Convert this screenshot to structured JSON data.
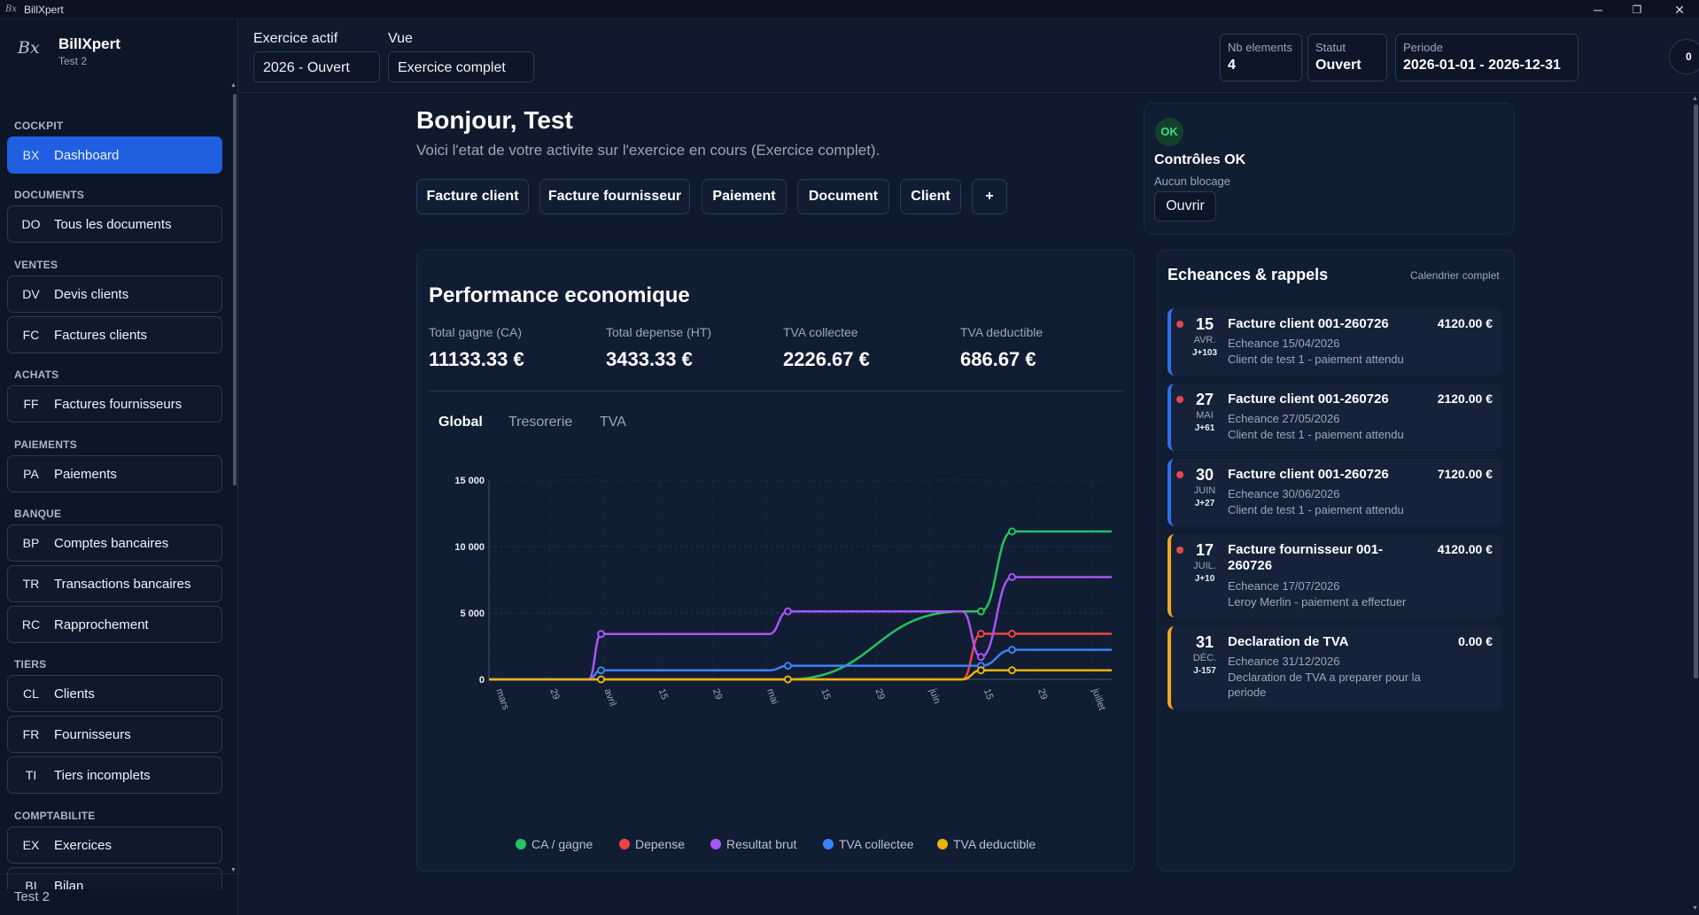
{
  "titlebar": {
    "logo": "Bx",
    "title": "BillXpert",
    "minimize": "─",
    "maximize": "❐",
    "close": "✕"
  },
  "brand": {
    "logo": "Bx",
    "name": "BillXpert",
    "subtitle": "Test 2"
  },
  "sidebar": {
    "sections": [
      {
        "title": "COCKPIT",
        "items": [
          {
            "code": "BX",
            "label": "Dashboard",
            "active": true
          }
        ]
      },
      {
        "title": "DOCUMENTS",
        "items": [
          {
            "code": "DO",
            "label": "Tous les documents"
          }
        ]
      },
      {
        "title": "VENTES",
        "items": [
          {
            "code": "DV",
            "label": "Devis clients"
          },
          {
            "code": "FC",
            "label": "Factures clients"
          }
        ]
      },
      {
        "title": "ACHATS",
        "items": [
          {
            "code": "FF",
            "label": "Factures fournisseurs"
          }
        ]
      },
      {
        "title": "PAIEMENTS",
        "items": [
          {
            "code": "PA",
            "label": "Paiements"
          }
        ]
      },
      {
        "title": "BANQUE",
        "items": [
          {
            "code": "BP",
            "label": "Comptes bancaires"
          },
          {
            "code": "TR",
            "label": "Transactions bancaires"
          },
          {
            "code": "RC",
            "label": "Rapprochement"
          }
        ]
      },
      {
        "title": "TIERS",
        "items": [
          {
            "code": "CL",
            "label": "Clients"
          },
          {
            "code": "FR",
            "label": "Fournisseurs"
          },
          {
            "code": "TI",
            "label": "Tiers incomplets"
          }
        ]
      },
      {
        "title": "COMPTABILITE",
        "items": [
          {
            "code": "EX",
            "label": "Exercices"
          },
          {
            "code": "BI",
            "label": "Bilan"
          }
        ]
      }
    ],
    "footer": "Test 2"
  },
  "topbar": {
    "exercice_label": "Exercice actif",
    "exercice_value": "2026 - Ouvert",
    "vue_label": "Vue",
    "vue_value": "Exercice complet",
    "stats": [
      {
        "key": "Nb elements",
        "value": "4"
      },
      {
        "key": "Statut",
        "value": "Ouvert"
      },
      {
        "key": "Periode",
        "value": "2026-01-01 - 2026-12-31"
      }
    ],
    "notif_count": "0"
  },
  "greeting": {
    "title": "Bonjour, Test",
    "subtitle": "Voici l'etat de votre activite sur l'exercice en cours (Exercice complet)."
  },
  "quick_actions": [
    "Facture client",
    "Facture fournisseur",
    "Paiement",
    "Document",
    "Client",
    "+"
  ],
  "controls": {
    "badge": "OK",
    "title": "Contrôles OK",
    "subtitle": "Aucun blocage",
    "button": "Ouvrir"
  },
  "performance": {
    "title": "Performance economique",
    "kpis": [
      {
        "label": "Total gagne (CA)",
        "value": "11133.33 €"
      },
      {
        "label": "Total depense (HT)",
        "value": "3433.33 €"
      },
      {
        "label": "TVA collectee",
        "value": "2226.67 €"
      },
      {
        "label": "TVA deductible",
        "value": "686.67 €"
      }
    ],
    "tabs": [
      "Global",
      "Tresorerie",
      "TVA"
    ],
    "active_tab": "Global"
  },
  "chart_data": {
    "type": "line",
    "y_ticks": [
      "15 000",
      "10 000",
      "5 000",
      "0"
    ],
    "ylim": [
      0,
      15000
    ],
    "x_ticks": [
      "mars",
      "29",
      "avril",
      "15",
      "29",
      "mai",
      "15",
      "29",
      "juin",
      "15",
      "29",
      "juillet"
    ],
    "grid": true,
    "legend_position": "bottom",
    "series": [
      {
        "name": "CA / gagne",
        "color": "#22c55e",
        "values": [
          0,
          0,
          0,
          0,
          0,
          5120,
          5120,
          11133.33,
          11133.33
        ]
      },
      {
        "name": "Depense",
        "color": "#ef4444",
        "values": [
          0,
          0,
          0,
          0,
          0,
          0,
          3433.33,
          3433.33,
          3433.33
        ]
      },
      {
        "name": "Resultat brut",
        "color": "#a855f7",
        "values": [
          0,
          0,
          3413.33,
          3413.33,
          5120,
          5120,
          1686.67,
          7700,
          7700
        ]
      },
      {
        "name": "TVA collectee",
        "color": "#3b82f6",
        "values": [
          0,
          0,
          682.67,
          682.67,
          1024,
          1024,
          1024,
          2226.67,
          2226.67
        ]
      },
      {
        "name": "TVA deductible",
        "color": "#eab308",
        "values": [
          0,
          0,
          0,
          0,
          0,
          0,
          686.67,
          686.67,
          686.67
        ]
      }
    ]
  },
  "echeances": {
    "title": "Echeances & rappels",
    "link": "Calendrier complet",
    "items": [
      {
        "day": "15",
        "month": "AVR.",
        "rel": "J+103",
        "title": "Facture client 001-260726",
        "amount": "4120.00 €",
        "line1": "Echeance 15/04/2026",
        "line2": "Client de test 1 - paiement attendu",
        "accent": "blue"
      },
      {
        "day": "27",
        "month": "MAI",
        "rel": "J+61",
        "title": "Facture client 001-260726",
        "amount": "2120.00 €",
        "line1": "Echeance 27/05/2026",
        "line2": "Client de test 1 - paiement attendu",
        "accent": "blue"
      },
      {
        "day": "30",
        "month": "JUIN",
        "rel": "J+27",
        "title": "Facture client 001-260726",
        "amount": "7120.00 €",
        "line1": "Echeance 30/06/2026",
        "line2": "Client de test 1 - paiement attendu",
        "accent": "blue"
      },
      {
        "day": "17",
        "month": "JUIL.",
        "rel": "J+10",
        "title": "Facture fournisseur 001-260726",
        "amount": "4120.00 €",
        "line1": "Echeance 17/07/2026",
        "line2": "Leroy Merlin - paiement a effectuer",
        "accent": "orange"
      },
      {
        "day": "31",
        "month": "DÉC.",
        "rel": "J-157",
        "title": "Declaration de TVA",
        "amount": "0.00 €",
        "line1": "Echeance 31/12/2026",
        "line2": "Declaration de TVA a preparer pour la periode",
        "accent": "orange"
      }
    ]
  }
}
